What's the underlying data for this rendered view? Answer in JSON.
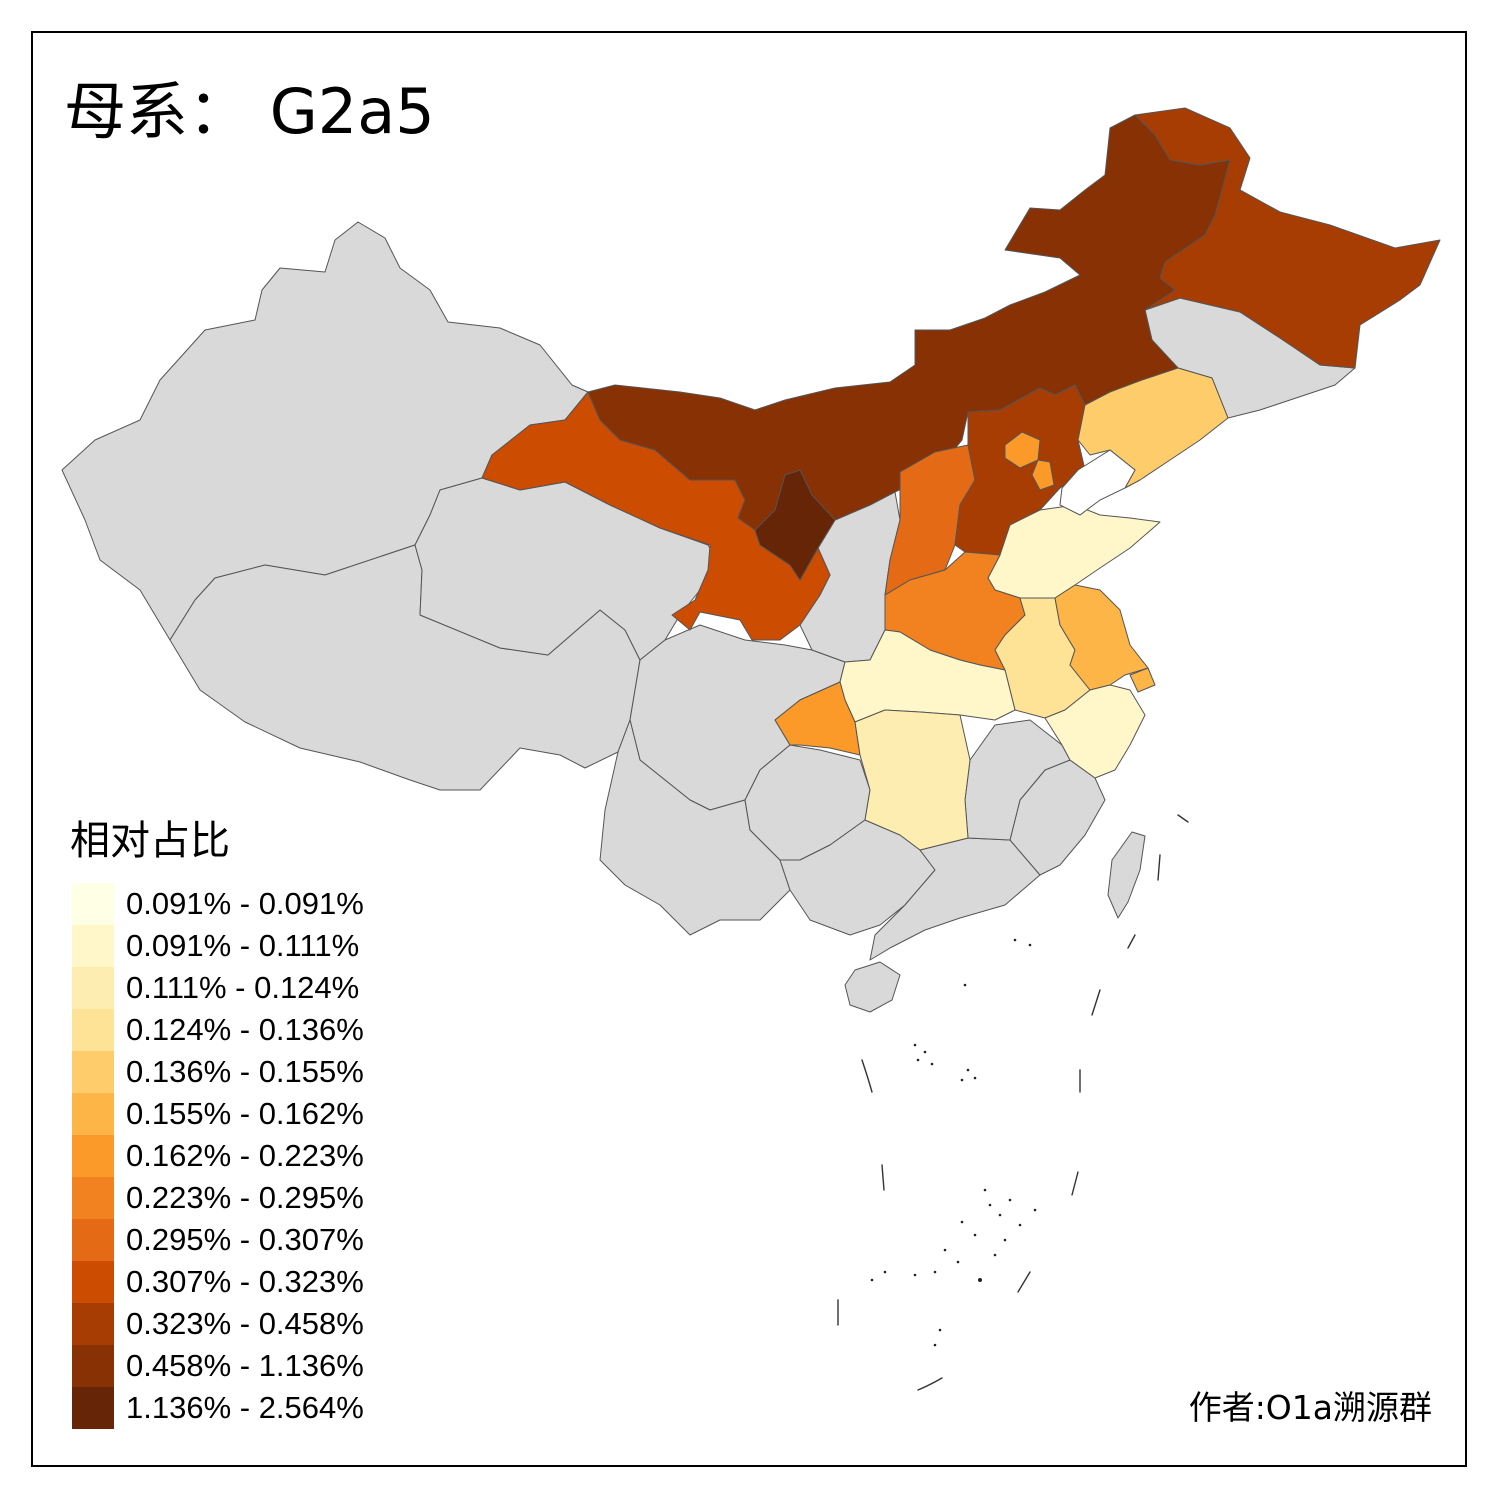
{
  "title": "母系： G2a5",
  "legend": {
    "title": "相对占比",
    "classes": [
      {
        "label": "0.091% - 0.091%",
        "color": "#FFFFE5"
      },
      {
        "label": "0.091% - 0.111%",
        "color": "#FFF7C9"
      },
      {
        "label": "0.111% - 0.124%",
        "color": "#FEEDB0"
      },
      {
        "label": "0.124% - 0.136%",
        "color": "#FEE296"
      },
      {
        "label": "0.136% - 0.155%",
        "color": "#FECC6A"
      },
      {
        "label": "0.155% - 0.162%",
        "color": "#FEB548"
      },
      {
        "label": "0.162% - 0.223%",
        "color": "#FB9A29"
      },
      {
        "label": "0.223% - 0.295%",
        "color": "#F2821F"
      },
      {
        "label": "0.295% - 0.307%",
        "color": "#E46A16"
      },
      {
        "label": "0.307% - 0.323%",
        "color": "#CC4C02"
      },
      {
        "label": "0.323% - 0.458%",
        "color": "#A83D04"
      },
      {
        "label": "0.458% - 1.136%",
        "color": "#873104"
      },
      {
        "label": "1.136% - 2.564%",
        "color": "#662506"
      }
    ]
  },
  "colors": {
    "no_data": "#D9D9D9",
    "border": "#555555"
  },
  "regions": [
    {
      "id": "xinjiang",
      "class": null
    },
    {
      "id": "tibet",
      "class": null
    },
    {
      "id": "qinghai",
      "class": null
    },
    {
      "id": "sichuan",
      "class": null
    },
    {
      "id": "yunnan",
      "class": null
    },
    {
      "id": "guizhou",
      "class": null
    },
    {
      "id": "guangxi",
      "class": null
    },
    {
      "id": "guangdong",
      "class": null
    },
    {
      "id": "fujian",
      "class": null
    },
    {
      "id": "jiangxi",
      "class": null
    },
    {
      "id": "shaanxi",
      "class": null
    },
    {
      "id": "jilin",
      "class": null
    },
    {
      "id": "hainan",
      "class": null
    },
    {
      "id": "taiwan",
      "class": null
    },
    {
      "id": "gansu",
      "class": 9
    },
    {
      "id": "inner-mongolia",
      "class": 11
    },
    {
      "id": "ningxia",
      "class": 12
    },
    {
      "id": "heilongjiang",
      "class": 10
    },
    {
      "id": "shanxi",
      "class": 8
    },
    {
      "id": "hebei",
      "class": 10
    },
    {
      "id": "beijing",
      "class": 6
    },
    {
      "id": "tianjin",
      "class": 6
    },
    {
      "id": "liaoning",
      "class": 4
    },
    {
      "id": "shandong",
      "class": 1
    },
    {
      "id": "henan",
      "class": 7
    },
    {
      "id": "anhui",
      "class": 3
    },
    {
      "id": "jiangsu",
      "class": 5
    },
    {
      "id": "shanghai",
      "class": 5
    },
    {
      "id": "hubei",
      "class": 1
    },
    {
      "id": "chongqing",
      "class": 6
    },
    {
      "id": "hunan",
      "class": 2
    },
    {
      "id": "zhejiang",
      "class": 1
    }
  ],
  "credit": "作者:O1a溯源群"
}
